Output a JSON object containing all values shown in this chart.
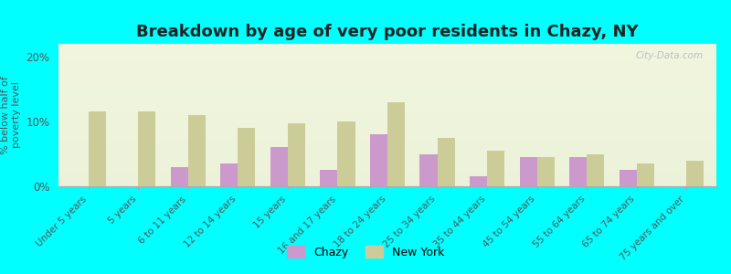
{
  "title": "Breakdown by age of very poor residents in Chazy, NY",
  "ylabel": "% below half of\npoverty level",
  "categories": [
    "Under 5 years",
    "5 years",
    "6 to 11 years",
    "12 to 14 years",
    "15 years",
    "16 and 17 years",
    "18 to 24 years",
    "25 to 34 years",
    "35 to 44 years",
    "45 to 54 years",
    "55 to 64 years",
    "65 to 74 years",
    "75 years and over"
  ],
  "chazy_values": [
    0,
    0,
    3.0,
    3.5,
    6.0,
    2.5,
    8.0,
    5.0,
    1.5,
    4.5,
    4.5,
    2.5,
    0
  ],
  "ny_values": [
    11.5,
    11.5,
    11.0,
    9.0,
    9.8,
    10.0,
    13.0,
    7.5,
    5.5,
    4.5,
    5.0,
    3.5,
    4.0
  ],
  "chazy_color": "#cc99cc",
  "ny_color": "#cccc99",
  "background_color": "#00ffff",
  "ylim": [
    0,
    22
  ],
  "yticks": [
    0,
    10,
    20
  ],
  "ytick_labels": [
    "0%",
    "10%",
    "20%"
  ],
  "bar_width": 0.35,
  "title_fontsize": 13,
  "axis_label_fontsize": 8,
  "tick_fontsize": 7.5,
  "legend_labels": [
    "Chazy",
    "New York"
  ],
  "watermark": "City-Data.com"
}
